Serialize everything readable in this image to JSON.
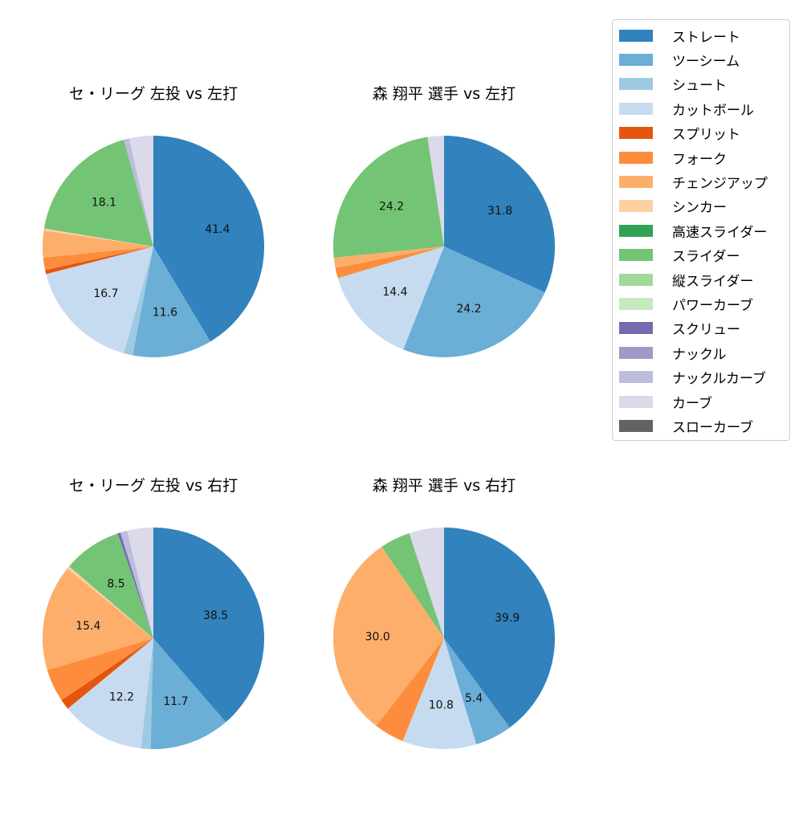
{
  "legend": {
    "items": [
      {
        "label": "ストレート",
        "color": "#3182bd"
      },
      {
        "label": "ツーシーム",
        "color": "#6baed6"
      },
      {
        "label": "シュート",
        "color": "#9ecae1"
      },
      {
        "label": "カットボール",
        "color": "#c6dbef"
      },
      {
        "label": "スプリット",
        "color": "#e6550d"
      },
      {
        "label": "フォーク",
        "color": "#fd8d3c"
      },
      {
        "label": "チェンジアップ",
        "color": "#fdae6b"
      },
      {
        "label": "シンカー",
        "color": "#fdd0a2"
      },
      {
        "label": "高速スライダー",
        "color": "#31a354"
      },
      {
        "label": "スライダー",
        "color": "#74c476"
      },
      {
        "label": "縦スライダー",
        "color": "#a1d99b"
      },
      {
        "label": "パワーカーブ",
        "color": "#c7e9c0"
      },
      {
        "label": "スクリュー",
        "color": "#756bb1"
      },
      {
        "label": "ナックル",
        "color": "#9e9ac8"
      },
      {
        "label": "ナックルカーブ",
        "color": "#bcbddc"
      },
      {
        "label": "カーブ",
        "color": "#dadaeb"
      },
      {
        "label": "スローカーブ",
        "color": "#636363"
      }
    ]
  },
  "chart_data": [
    {
      "type": "pie",
      "title": "セ・リーグ 左投 vs 左打",
      "start_angle": 90,
      "direction": "clockwise",
      "slices": [
        {
          "label": "ストレート",
          "value": 41.4,
          "show_label": true
        },
        {
          "label": "ツーシーム",
          "value": 11.6,
          "show_label": true
        },
        {
          "label": "シュート",
          "value": 1.3,
          "show_label": false
        },
        {
          "label": "カットボール",
          "value": 16.7,
          "show_label": true
        },
        {
          "label": "スプリット",
          "value": 0.6,
          "show_label": false
        },
        {
          "label": "フォーク",
          "value": 1.8,
          "show_label": false
        },
        {
          "label": "チェンジアップ",
          "value": 3.9,
          "show_label": false
        },
        {
          "label": "シンカー",
          "value": 0.3,
          "show_label": false
        },
        {
          "label": "スライダー",
          "value": 18.1,
          "show_label": true
        },
        {
          "label": "ナックルカーブ",
          "value": 0.8,
          "show_label": false
        },
        {
          "label": "カーブ",
          "value": 3.5,
          "show_label": false
        }
      ]
    },
    {
      "type": "pie",
      "title": "森 翔平 選手 vs 左打",
      "start_angle": 90,
      "direction": "clockwise",
      "slices": [
        {
          "label": "ストレート",
          "value": 31.8,
          "show_label": true
        },
        {
          "label": "ツーシーム",
          "value": 24.2,
          "show_label": true
        },
        {
          "label": "カットボール",
          "value": 14.4,
          "show_label": true
        },
        {
          "label": "フォーク",
          "value": 1.5,
          "show_label": false
        },
        {
          "label": "チェンジアップ",
          "value": 1.5,
          "show_label": false
        },
        {
          "label": "スライダー",
          "value": 24.2,
          "show_label": true
        },
        {
          "label": "カーブ",
          "value": 2.4,
          "show_label": false
        }
      ]
    },
    {
      "type": "pie",
      "title": "セ・リーグ 左投 vs 右打",
      "start_angle": 90,
      "direction": "clockwise",
      "slices": [
        {
          "label": "ストレート",
          "value": 38.5,
          "show_label": true
        },
        {
          "label": "ツーシーム",
          "value": 11.7,
          "show_label": true
        },
        {
          "label": "シュート",
          "value": 1.4,
          "show_label": false
        },
        {
          "label": "カットボール",
          "value": 12.2,
          "show_label": true
        },
        {
          "label": "スプリット",
          "value": 1.5,
          "show_label": false
        },
        {
          "label": "フォーク",
          "value": 4.8,
          "show_label": false
        },
        {
          "label": "チェンジアップ",
          "value": 15.4,
          "show_label": true
        },
        {
          "label": "シンカー",
          "value": 0.4,
          "show_label": false
        },
        {
          "label": "スライダー",
          "value": 8.5,
          "show_label": true
        },
        {
          "label": "スクリュー",
          "value": 0.4,
          "show_label": false
        },
        {
          "label": "ナックルカーブ",
          "value": 1.0,
          "show_label": false
        },
        {
          "label": "カーブ",
          "value": 3.8,
          "show_label": false
        }
      ]
    },
    {
      "type": "pie",
      "title": "森 翔平 選手 vs 右打",
      "start_angle": 90,
      "direction": "clockwise",
      "slices": [
        {
          "label": "ストレート",
          "value": 39.9,
          "show_label": true
        },
        {
          "label": "ツーシーム",
          "value": 5.4,
          "show_label": true
        },
        {
          "label": "カットボール",
          "value": 10.8,
          "show_label": true
        },
        {
          "label": "フォーク",
          "value": 4.4,
          "show_label": false
        },
        {
          "label": "チェンジアップ",
          "value": 30.0,
          "show_label": true
        },
        {
          "label": "スライダー",
          "value": 4.4,
          "show_label": false
        },
        {
          "label": "カーブ",
          "value": 5.1,
          "show_label": false
        }
      ]
    }
  ]
}
